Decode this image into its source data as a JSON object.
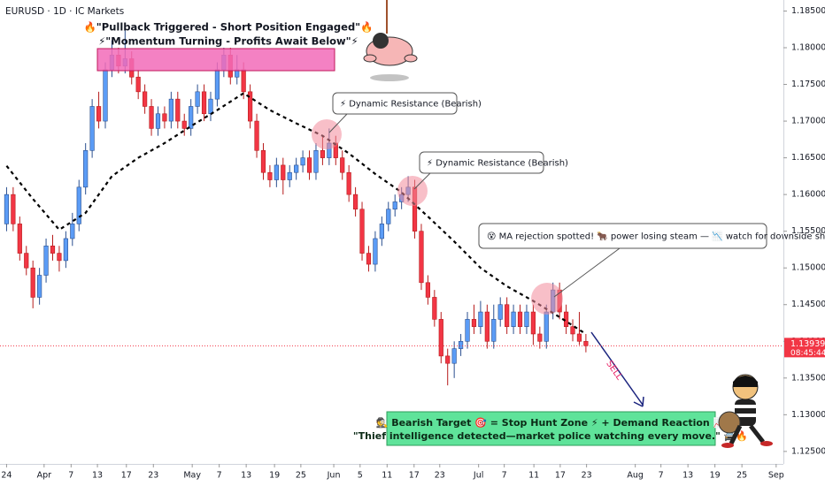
{
  "header": {
    "symbol": "EURUSD · 1D · IC Markets"
  },
  "annotations": {
    "headline_1": "🔥\"Pullback Triggered - Short Position Engaged\"🔥",
    "headline_2": "⚡\"Momentum Turning - Profits Await Below\"⚡",
    "resistance_1": "⚡ Dynamic Resistance (Bearish)",
    "resistance_2": "⚡ Dynamic Resistance (Bearish)",
    "rejection": "😵 MA rejection spotted! 🐂 power losing steam — 📉 watch for downside shift!",
    "sell": "SELL",
    "target_1": "🕵️ Bearish Target 🎯 = Stop Hunt Zone ⚡ + Demand Reaction 📈",
    "target_2": "\"Thief intelligence detected—market police watching every move.\" 🚔🔥"
  },
  "chart_data": {
    "type": "candlestick",
    "up_color": "#5b9cf6",
    "down_color": "#f23645",
    "open": [
      1.156,
      1.16,
      1.156,
      1.152,
      1.15,
      1.146,
      1.149,
      1.153,
      1.152,
      1.151,
      1.154,
      1.156,
      1.161,
      1.166,
      1.172,
      1.17,
      1.177,
      1.179,
      1.1775,
      1.1785,
      1.176,
      1.174,
      1.172,
      1.169,
      1.171,
      1.17,
      1.173,
      1.17,
      1.169,
      1.172,
      1.174,
      1.171,
      1.173,
      1.177,
      1.179,
      1.176,
      1.177,
      1.174,
      1.17,
      1.166,
      1.163,
      1.162,
      1.164,
      1.162,
      1.163,
      1.164,
      1.165,
      1.163,
      1.166,
      1.165,
      1.167,
      1.165,
      1.163,
      1.16,
      1.158,
      1.152,
      1.1505,
      1.154,
      1.156,
      1.158,
      1.159,
      1.16,
      1.161,
      1.155,
      1.148,
      1.146,
      1.143,
      1.138,
      1.137,
      1.139,
      1.14,
      1.143,
      1.142,
      1.144,
      1.14,
      1.143,
      1.145,
      1.142,
      1.144,
      1.142,
      1.144,
      1.141,
      1.14,
      1.144,
      1.147,
      1.144,
      1.142,
      1.141,
      1.14
    ],
    "high": [
      1.161,
      1.161,
      1.157,
      1.153,
      1.151,
      1.15,
      1.154,
      1.1545,
      1.153,
      1.155,
      1.1575,
      1.162,
      1.167,
      1.173,
      1.174,
      1.178,
      1.181,
      1.18,
      1.183,
      1.1795,
      1.177,
      1.175,
      1.173,
      1.172,
      1.172,
      1.174,
      1.174,
      1.171,
      1.173,
      1.175,
      1.175,
      1.174,
      1.178,
      1.18,
      1.18,
      1.179,
      1.178,
      1.175,
      1.171,
      1.167,
      1.164,
      1.165,
      1.165,
      1.164,
      1.165,
      1.166,
      1.166,
      1.167,
      1.168,
      1.169,
      1.168,
      1.166,
      1.164,
      1.161,
      1.159,
      1.153,
      1.155,
      1.157,
      1.159,
      1.16,
      1.161,
      1.1625,
      1.162,
      1.156,
      1.149,
      1.147,
      1.144,
      1.139,
      1.14,
      1.141,
      1.144,
      1.145,
      1.1455,
      1.145,
      1.145,
      1.146,
      1.146,
      1.145,
      1.145,
      1.145,
      1.145,
      1.142,
      1.145,
      1.148,
      1.148,
      1.145,
      1.143,
      1.144,
      1.141
    ],
    "low": [
      1.155,
      1.155,
      1.151,
      1.149,
      1.1445,
      1.145,
      1.148,
      1.151,
      1.1495,
      1.15,
      1.153,
      1.155,
      1.16,
      1.165,
      1.169,
      1.169,
      1.176,
      1.1765,
      1.1765,
      1.175,
      1.173,
      1.171,
      1.168,
      1.168,
      1.169,
      1.169,
      1.169,
      1.168,
      1.168,
      1.171,
      1.17,
      1.17,
      1.172,
      1.176,
      1.175,
      1.175,
      1.173,
      1.169,
      1.165,
      1.162,
      1.161,
      1.161,
      1.16,
      1.161,
      1.162,
      1.163,
      1.162,
      1.162,
      1.164,
      1.164,
      1.164,
      1.162,
      1.159,
      1.157,
      1.151,
      1.1495,
      1.1495,
      1.153,
      1.155,
      1.157,
      1.158,
      1.159,
      1.154,
      1.147,
      1.145,
      1.142,
      1.137,
      1.134,
      1.135,
      1.138,
      1.139,
      1.141,
      1.141,
      1.139,
      1.139,
      1.142,
      1.141,
      1.141,
      1.141,
      1.141,
      1.1395,
      1.139,
      1.139,
      1.143,
      1.143,
      1.141,
      1.14,
      1.1395,
      1.1385
    ],
    "close": [
      1.16,
      1.156,
      1.152,
      1.15,
      1.146,
      1.149,
      1.153,
      1.152,
      1.151,
      1.154,
      1.156,
      1.161,
      1.166,
      1.172,
      1.17,
      1.177,
      1.179,
      1.1775,
      1.1785,
      1.176,
      1.174,
      1.172,
      1.169,
      1.171,
      1.17,
      1.173,
      1.17,
      1.169,
      1.172,
      1.174,
      1.171,
      1.173,
      1.177,
      1.179,
      1.176,
      1.177,
      1.174,
      1.17,
      1.166,
      1.163,
      1.162,
      1.164,
      1.162,
      1.163,
      1.164,
      1.165,
      1.163,
      1.166,
      1.165,
      1.167,
      1.165,
      1.163,
      1.16,
      1.158,
      1.152,
      1.1505,
      1.154,
      1.156,
      1.158,
      1.159,
      1.16,
      1.161,
      1.155,
      1.148,
      1.146,
      1.143,
      1.138,
      1.137,
      1.139,
      1.14,
      1.143,
      1.142,
      1.144,
      1.14,
      1.143,
      1.145,
      1.142,
      1.144,
      1.142,
      1.144,
      1.141,
      1.14,
      1.144,
      1.147,
      1.144,
      1.142,
      1.141,
      1.14,
      1.1394
    ],
    "ma": {
      "color": "#000000",
      "dashed": true,
      "x": [
        0,
        4,
        8,
        12,
        16,
        20,
        24,
        28,
        32,
        36,
        40,
        44,
        48,
        52,
        56,
        60,
        64,
        68,
        72,
        76,
        80,
        84,
        88
      ],
      "values": [
        1.1639,
        1.1594,
        1.1552,
        1.1575,
        1.1625,
        1.165,
        1.167,
        1.1693,
        1.1715,
        1.1738,
        1.1715,
        1.1697,
        1.168,
        1.1656,
        1.1628,
        1.1603,
        1.157,
        1.1536,
        1.15,
        1.1475,
        1.1455,
        1.1433,
        1.141
      ]
    },
    "xlim": [
      -1,
      118
    ],
    "xticks": [
      {
        "value": 0,
        "label": "24"
      },
      {
        "value": 5.7,
        "label": "Apr"
      },
      {
        "value": 9.8,
        "label": "7"
      },
      {
        "value": 13.8,
        "label": "13"
      },
      {
        "value": 18.2,
        "label": "17"
      },
      {
        "value": 22.3,
        "label": "23"
      },
      {
        "value": 28.2,
        "label": "May"
      },
      {
        "value": 32.3,
        "label": "7"
      },
      {
        "value": 36.4,
        "label": "13"
      },
      {
        "value": 40.7,
        "label": "19"
      },
      {
        "value": 44.7,
        "label": "25"
      },
      {
        "value": 49.7,
        "label": "Jun"
      },
      {
        "value": 53.7,
        "label": "5"
      },
      {
        "value": 57.8,
        "label": "11"
      },
      {
        "value": 61.9,
        "label": "17"
      },
      {
        "value": 65.8,
        "label": "23"
      },
      {
        "value": 71.7,
        "label": "Jul"
      },
      {
        "value": 75.6,
        "label": "7"
      },
      {
        "value": 80.1,
        "label": "11"
      },
      {
        "value": 84.1,
        "label": "17"
      },
      {
        "value": 88.1,
        "label": "23"
      },
      {
        "value": 95.5,
        "label": "Aug"
      },
      {
        "value": 99.4,
        "label": "7"
      },
      {
        "value": 103.5,
        "label": "13"
      },
      {
        "value": 107.6,
        "label": "19"
      },
      {
        "value": 111.7,
        "label": "25"
      },
      {
        "value": 116.9,
        "label": "Sep"
      }
    ],
    "ylim": [
      1.1233,
      1.1865
    ],
    "yticks": [
      {
        "value": 1.125,
        "label": "1.12500"
      },
      {
        "value": 1.13,
        "label": "1.13000"
      },
      {
        "value": 1.135,
        "label": "1.13500"
      },
      {
        "value": 1.14,
        "label": "1.14000"
      },
      {
        "value": 1.145,
        "label": "1.14500"
      },
      {
        "value": 1.15,
        "label": "1.15000"
      },
      {
        "value": 1.155,
        "label": "1.15500"
      },
      {
        "value": 1.16,
        "label": "1.16000"
      },
      {
        "value": 1.165,
        "label": "1.16500"
      },
      {
        "value": 1.17,
        "label": "1.17000"
      },
      {
        "value": 1.175,
        "label": "1.17500"
      },
      {
        "value": 1.18,
        "label": "1.18000"
      },
      {
        "value": 1.185,
        "label": "1.18500"
      }
    ],
    "last_price": 1.13939,
    "last_price_color": "#f23645",
    "countdown": "08:45:44"
  }
}
